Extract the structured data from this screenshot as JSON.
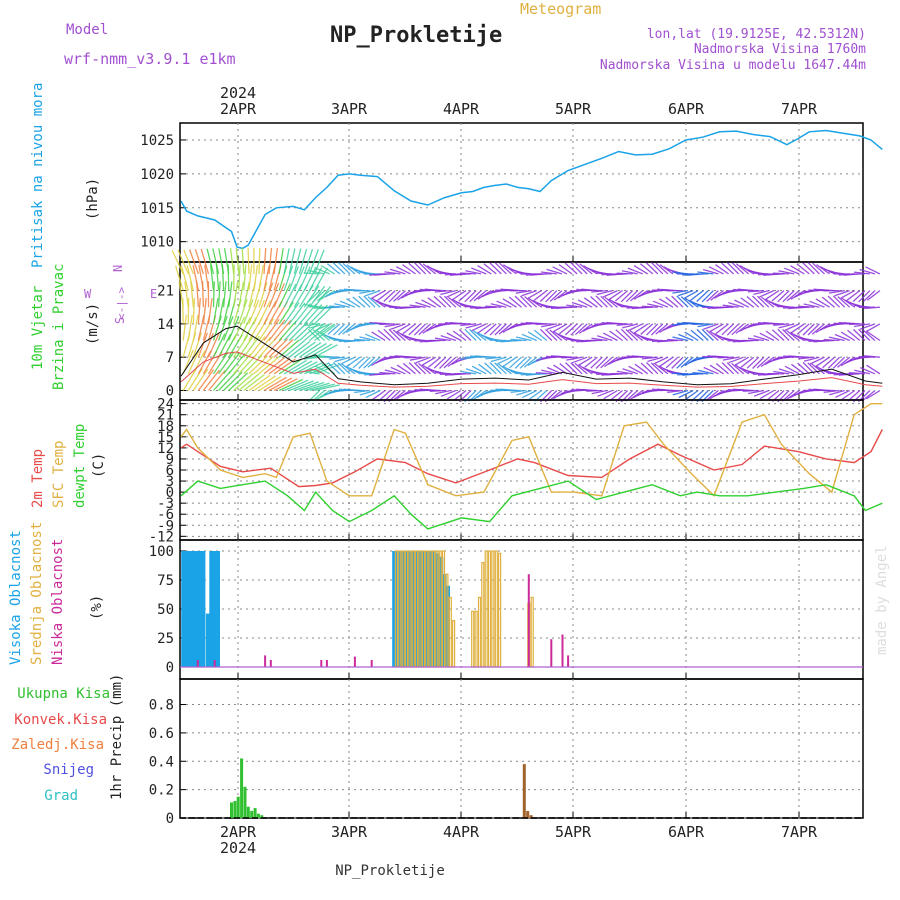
{
  "header": {
    "model_label": "Model",
    "model_name": "wrf-nmm_v3.9.1  e1km",
    "title": "NP_Prokletije",
    "meteogram_label": "Meteogram",
    "lonlat": "lon,lat (19.9125E, 42.5312N)",
    "elevation": "Nadmorska Visina 1760m",
    "model_elevation": "Nadmorska Visina u modelu 1647.44m"
  },
  "footer_label": "NP_Prokletije",
  "watermark": "made by Angel",
  "colors": {
    "pressure": "#1aa3e6",
    "temp2m": "#e84a4a",
    "sfctemp": "#e0b040",
    "dewpt": "#30d030",
    "cloud_high": "#1aa3e6",
    "cloud_mid": "#e0b040",
    "cloud_low": "#cc2a9a",
    "precip_total": "#30c030",
    "precip_frozen": "#a0642a",
    "wind_strong": "#8a30d8",
    "magenta": "#b060d0"
  },
  "top_axis": {
    "year": "2024",
    "days": [
      "2APR",
      "3APR",
      "4APR",
      "5APR",
      "6APR",
      "7APR"
    ]
  },
  "bottom_axis": {
    "year": "2024",
    "days": [
      "2APR",
      "3APR",
      "4APR",
      "5APR",
      "6APR",
      "7APR"
    ]
  },
  "chart_data": [
    {
      "type": "line",
      "panel": "pressure",
      "ylabel": "Pritisak na nivou mora",
      "unit": "(hPa)",
      "yticks": [
        "1010",
        "1015",
        "1020",
        "1025"
      ],
      "ylim": [
        1007,
        1027.5
      ],
      "x_day_range": [
        0,
        6.25
      ],
      "series": [
        {
          "name": "",
          "x": [
            0,
            0.05,
            0.15,
            0.3,
            0.45,
            0.5,
            0.55,
            0.6,
            0.75,
            0.85,
            1.0,
            1.1,
            1.2,
            1.3,
            1.4,
            1.5,
            1.6,
            1.75,
            1.9,
            2.05,
            2.2,
            2.35,
            2.5,
            2.6,
            2.7,
            2.8,
            2.9,
            3.0,
            3.1,
            3.2,
            3.3,
            3.45,
            3.6,
            3.75,
            3.9,
            4.05,
            4.2,
            4.35,
            4.5,
            4.65,
            4.8,
            4.95,
            5.1,
            5.25,
            5.4,
            5.5,
            5.6,
            5.75,
            5.9,
            6.05,
            6.15,
            6.25
          ],
          "values": [
            1016,
            1014.5,
            1013.8,
            1013.2,
            1011.5,
            1009.2,
            1009,
            1009.5,
            1014,
            1015,
            1015.2,
            1014.7,
            1016.5,
            1018,
            1019.8,
            1020,
            1019.8,
            1019.6,
            1017.5,
            1016,
            1015.4,
            1016.5,
            1017.2,
            1017.4,
            1018,
            1018.3,
            1018.5,
            1018,
            1017.8,
            1017.4,
            1019,
            1020.5,
            1021.4,
            1022.3,
            1023.3,
            1022.8,
            1022.9,
            1023.7,
            1025,
            1025.4,
            1026.2,
            1026.3,
            1025.8,
            1025.5,
            1024.3,
            1025.2,
            1026.2,
            1026.4,
            1026,
            1025.6,
            1025,
            1023.6
          ]
        }
      ]
    },
    {
      "type": "line",
      "panel": "wind",
      "ylabel": "10m Vjetar Brzina i Pravac",
      "unit": "(m/s)",
      "compass": [
        "N",
        "S",
        "W",
        "E",
        "<-|->"
      ],
      "yticks": [
        "0",
        "7",
        "14",
        "21"
      ],
      "ylim": [
        -2,
        27
      ],
      "x_day_range": [
        0,
        6.25
      ],
      "series": [
        {
          "name": "",
          "x": [
            0,
            0.2,
            0.4,
            0.5,
            0.6,
            0.8,
            1.0,
            1.2,
            1.4,
            1.6,
            1.9,
            2.2,
            2.5,
            2.8,
            3.1,
            3.4,
            3.7,
            4.0,
            4.3,
            4.6,
            4.9,
            5.2,
            5.5,
            5.8,
            6.1,
            6.25
          ],
          "values": [
            3,
            10,
            13,
            13.5,
            12,
            9,
            6,
            7.5,
            2.5,
            1.8,
            1.2,
            1.5,
            2.4,
            2.6,
            2.2,
            3.8,
            2.4,
            2.6,
            1.8,
            1.2,
            1.4,
            2.4,
            3.3,
            4.5,
            2,
            1.5
          ]
        }
      ]
    },
    {
      "type": "line",
      "panel": "temperature",
      "labels": [
        "2m Temp",
        "SFC Temp",
        "dewpt Temp"
      ],
      "unit": "(C)",
      "yticks": [
        "-12",
        "-9",
        "-6",
        "-3",
        "0",
        "3",
        "6",
        "9",
        "12",
        "15",
        "18",
        "21",
        "24"
      ],
      "ylim": [
        -13,
        25
      ],
      "x_day_range": [
        0,
        6.25
      ],
      "series": [
        {
          "name": "2m Temp",
          "x": [
            0,
            0.05,
            0.2,
            0.35,
            0.55,
            0.8,
            1.05,
            1.2,
            1.35,
            1.55,
            1.75,
            2.0,
            2.2,
            2.45,
            2.75,
            3.0,
            3.15,
            3.45,
            3.75,
            4.0,
            4.25,
            4.45,
            4.75,
            5.0,
            5.2,
            5.5,
            5.75,
            6.0,
            6.15,
            6.25
          ],
          "values": [
            12,
            13,
            10,
            7,
            5.5,
            6.5,
            1.5,
            1.8,
            2.5,
            5.5,
            9,
            8,
            5,
            2.5,
            6,
            9,
            8,
            4.5,
            4,
            9,
            13,
            10,
            6,
            7.5,
            12.5,
            11,
            9,
            8,
            11,
            17
          ]
        },
        {
          "name": "SFC Temp",
          "x": [
            0,
            0.05,
            0.15,
            0.35,
            0.55,
            0.75,
            0.85,
            1.0,
            1.15,
            1.3,
            1.5,
            1.7,
            1.9,
            2.0,
            2.2,
            2.45,
            2.7,
            2.95,
            3.1,
            3.3,
            3.5,
            3.75,
            3.95,
            4.15,
            4.3,
            4.55,
            4.75,
            5.0,
            5.2,
            5.35,
            5.6,
            5.8,
            6.0,
            6.15,
            6.25
          ],
          "values": [
            15,
            17,
            12,
            6,
            4,
            5,
            4,
            15,
            16,
            3,
            -1,
            -1,
            17,
            16,
            2,
            -1,
            0,
            14,
            15,
            0,
            0,
            -1,
            18,
            19,
            13,
            5,
            -1,
            19,
            21,
            13,
            5,
            0,
            21,
            24,
            24
          ]
        },
        {
          "name": "dewpt Temp",
          "x": [
            0,
            0.15,
            0.35,
            0.55,
            0.75,
            0.95,
            1.1,
            1.2,
            1.35,
            1.5,
            1.7,
            1.9,
            2.05,
            2.2,
            2.5,
            2.75,
            2.95,
            3.2,
            3.45,
            3.7,
            3.95,
            4.2,
            4.45,
            4.6,
            4.8,
            5.05,
            5.3,
            5.55,
            5.75,
            6.0,
            6.1,
            6.25
          ],
          "values": [
            -1,
            3,
            1,
            2,
            3,
            -1,
            -5,
            0,
            -5,
            -8,
            -5,
            -1,
            -6,
            -10,
            -7,
            -8,
            -1,
            1,
            3,
            -2,
            0,
            2,
            -1,
            0,
            -1,
            -1,
            0,
            1,
            2,
            -1,
            -5,
            -3
          ]
        }
      ]
    },
    {
      "type": "bar",
      "panel": "cloud",
      "labels": [
        "Visoka Oblacnost",
        "Srednja Oblacnost",
        "Niska Oblacnost"
      ],
      "unit": "(%)",
      "yticks": [
        "0",
        "25",
        "50",
        "75",
        "100"
      ],
      "ylim": [
        0,
        100
      ],
      "x_day_range": [
        0,
        6.25
      ],
      "series": [
        {
          "name": "Visoka Oblacnost",
          "x": [
            0.02,
            0.05,
            0.08,
            0.11,
            0.14,
            0.17,
            0.2,
            0.24,
            0.27,
            0.3,
            0.33,
            1.9,
            1.93,
            1.96,
            1.99,
            2.02,
            2.05,
            2.08,
            2.11,
            2.14,
            2.17,
            2.2,
            2.23,
            2.26,
            2.29,
            2.32,
            2.35,
            2.38
          ],
          "values": [
            100,
            100,
            100,
            100,
            100,
            100,
            100,
            46,
            100,
            100,
            100,
            100,
            100,
            100,
            100,
            100,
            100,
            100,
            100,
            100,
            100,
            100,
            100,
            100,
            98,
            95,
            80,
            70
          ]
        },
        {
          "name": "Srednja Oblacnost",
          "x": [
            1.92,
            1.95,
            1.98,
            2.01,
            2.04,
            2.07,
            2.1,
            2.13,
            2.16,
            2.19,
            2.22,
            2.25,
            2.28,
            2.31,
            2.34,
            2.37,
            2.4,
            2.43,
            2.6,
            2.63,
            2.66,
            2.69,
            2.72,
            2.75,
            2.78,
            2.81,
            2.84,
            3.1,
            3.13
          ],
          "values": [
            100,
            100,
            100,
            100,
            100,
            100,
            100,
            100,
            100,
            100,
            100,
            100,
            100,
            100,
            100,
            80,
            60,
            40,
            48,
            48,
            60,
            90,
            100,
            100,
            100,
            100,
            98,
            55,
            60
          ]
        },
        {
          "name": "Niska Oblacnost",
          "x": [
            0.15,
            0.3,
            0.75,
            0.8,
            1.25,
            1.3,
            1.55,
            1.7,
            3.1,
            3.3,
            3.4,
            3.45
          ],
          "values": [
            6,
            6,
            10,
            6,
            6,
            6,
            9,
            6,
            80,
            24,
            28,
            10
          ]
        }
      ]
    },
    {
      "type": "bar",
      "panel": "precip",
      "labels": [
        "Ukupna Kisa",
        "Konvek.Kisa",
        "Zaledj.Kisa",
        "Snijeg",
        "Grad"
      ],
      "unit": "1hr Precip (mm)",
      "yticks": [
        "0",
        "0.2",
        "0.4",
        "0.6",
        "0.8"
      ],
      "ylim": [
        0,
        0.98
      ],
      "x_day_range": [
        0,
        6.25
      ],
      "series": [
        {
          "name": "Ukupna Kisa",
          "x": [
            0.45,
            0.48,
            0.51,
            0.54,
            0.57,
            0.6,
            0.63,
            0.66,
            0.69,
            0.72
          ],
          "values": [
            0.11,
            0.12,
            0.15,
            0.42,
            0.22,
            0.08,
            0.05,
            0.07,
            0.03,
            0.02
          ]
        },
        {
          "name": "Snijeg",
          "x": [
            3.06,
            3.09,
            3.12
          ],
          "values": [
            0.38,
            0.05,
            0.02
          ]
        }
      ]
    }
  ]
}
